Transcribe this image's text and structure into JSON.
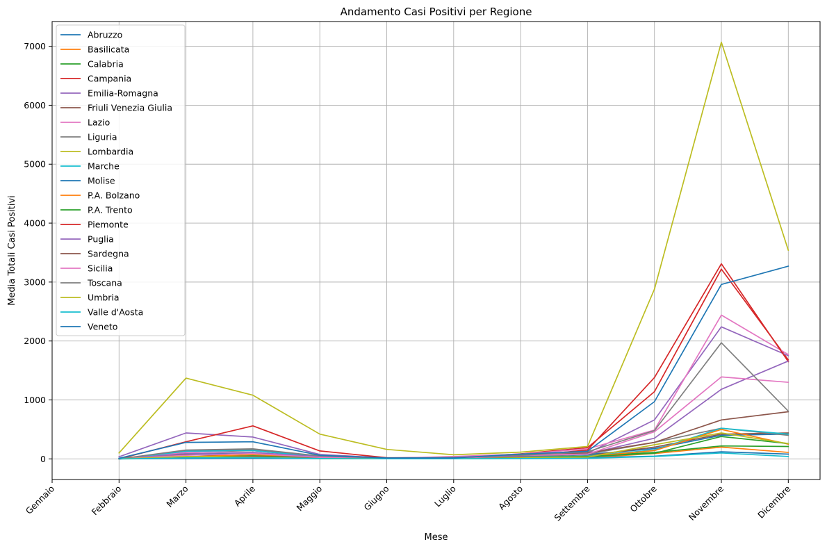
{
  "chart_data": {
    "type": "line",
    "title": "Andamento Casi Positivi per Regione",
    "xlabel": "Mese",
    "ylabel": "Media Totali Casi Positivi",
    "categories": [
      "Gennaio",
      "Febbraio",
      "Marzo",
      "Aprile",
      "Maggio",
      "Giugno",
      "Luglio",
      "Agosto",
      "Settembre",
      "Ottobre",
      "Novembre",
      "Dicembre"
    ],
    "ylim": [
      -350,
      7420
    ],
    "yticks": [
      0,
      1000,
      2000,
      3000,
      4000,
      5000,
      6000,
      7000
    ],
    "grid": true,
    "legend_position": "top-left",
    "series": [
      {
        "name": "Abruzzo",
        "color": "#1f77b4",
        "values": [
          null,
          0,
          85,
          95,
          30,
          5,
          10,
          40,
          75,
          175,
          400,
          420
        ]
      },
      {
        "name": "Basilicata",
        "color": "#ff7f0e",
        "values": [
          null,
          0,
          10,
          20,
          5,
          2,
          5,
          10,
          20,
          90,
          200,
          110
        ]
      },
      {
        "name": "Calabria",
        "color": "#2ca02c",
        "values": [
          null,
          0,
          35,
          55,
          15,
          3,
          5,
          15,
          45,
          110,
          220,
          210
        ]
      },
      {
        "name": "Campania",
        "color": "#d62728",
        "values": [
          null,
          0,
          115,
          140,
          40,
          5,
          20,
          85,
          190,
          1140,
          3220,
          1680
        ]
      },
      {
        "name": "Emilia-Romagna",
        "color": "#9467bd",
        "values": [
          null,
          35,
          440,
          370,
          75,
          15,
          30,
          65,
          95,
          660,
          2240,
          1750
        ]
      },
      {
        "name": "Friuli Venezia Giulia",
        "color": "#8c564b",
        "values": [
          null,
          0,
          70,
          50,
          15,
          3,
          10,
          20,
          55,
          200,
          420,
          440
        ]
      },
      {
        "name": "Lazio",
        "color": "#e377c2",
        "values": [
          null,
          0,
          110,
          150,
          35,
          10,
          40,
          80,
          170,
          490,
          2440,
          1770
        ]
      },
      {
        "name": "Liguria",
        "color": "#7f7f7f",
        "values": [
          null,
          0,
          135,
          155,
          35,
          10,
          15,
          35,
          80,
          280,
          520,
          400
        ]
      },
      {
        "name": "Lombardia",
        "color": "#bcbd22",
        "values": [
          null,
          100,
          1370,
          1080,
          420,
          160,
          70,
          115,
          210,
          2880,
          7070,
          3540
        ]
      },
      {
        "name": "Marche",
        "color": "#17becf",
        "values": [
          null,
          0,
          130,
          140,
          35,
          5,
          10,
          25,
          50,
          150,
          520,
          420
        ]
      },
      {
        "name": "Molise",
        "color": "#1f77b4",
        "values": [
          null,
          0,
          5,
          10,
          5,
          2,
          3,
          10,
          20,
          45,
          120,
          80
        ]
      },
      {
        "name": "P.A. Bolzano",
        "color": "#ff7f0e",
        "values": [
          null,
          0,
          35,
          70,
          20,
          2,
          5,
          20,
          40,
          140,
          500,
          250
        ]
      },
      {
        "name": "P.A. Trento",
        "color": "#2ca02c",
        "values": [
          null,
          0,
          25,
          50,
          15,
          3,
          10,
          20,
          40,
          95,
          380,
          260
        ]
      },
      {
        "name": "Piemonte",
        "color": "#d62728",
        "values": [
          null,
          0,
          290,
          560,
          135,
          20,
          15,
          45,
          150,
          1380,
          3310,
          1650
        ]
      },
      {
        "name": "Puglia",
        "color": "#9467bd",
        "values": [
          null,
          0,
          90,
          110,
          35,
          5,
          10,
          50,
          85,
          350,
          1180,
          1660
        ]
      },
      {
        "name": "Sardegna",
        "color": "#8c564b",
        "values": [
          null,
          0,
          30,
          40,
          10,
          3,
          10,
          80,
          100,
          280,
          660,
          800
        ]
      },
      {
        "name": "Sicilia",
        "color": "#e377c2",
        "values": [
          null,
          0,
          60,
          90,
          25,
          5,
          15,
          60,
          80,
          460,
          1390,
          1300
        ]
      },
      {
        "name": "Toscana",
        "color": "#7f7f7f",
        "values": [
          null,
          0,
          150,
          170,
          50,
          10,
          25,
          60,
          120,
          480,
          1970,
          810
        ]
      },
      {
        "name": "Umbria",
        "color": "#bcbd22",
        "values": [
          null,
          0,
          40,
          30,
          5,
          2,
          3,
          15,
          30,
          240,
          440,
          260
        ]
      },
      {
        "name": "Valle d'Aosta",
        "color": "#17becf",
        "values": [
          null,
          0,
          15,
          20,
          5,
          1,
          2,
          5,
          10,
          40,
          100,
          40
        ]
      },
      {
        "name": "Veneto",
        "color": "#1f77b4",
        "values": [
          null,
          10,
          280,
          290,
          60,
          15,
          15,
          80,
          130,
          970,
          2960,
          3270
        ]
      }
    ]
  }
}
